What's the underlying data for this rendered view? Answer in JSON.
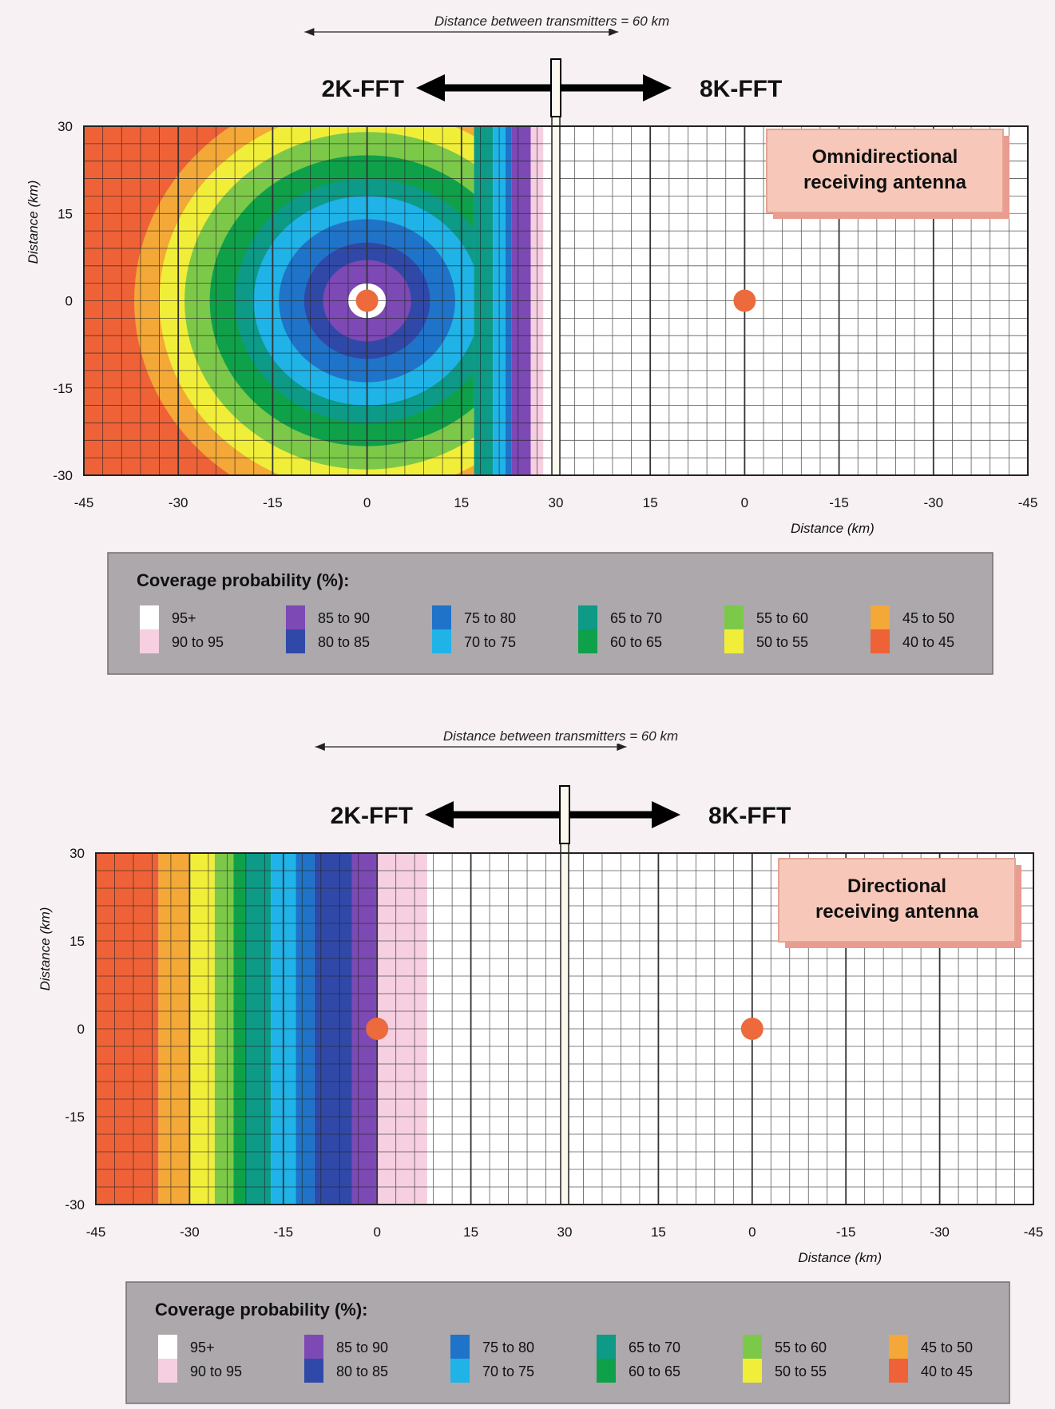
{
  "palette": {
    "95+": "#ffffff",
    "90 to 95": "#f6cfe1",
    "85 to 90": "#7d49b5",
    "80 to 85": "#3049a8",
    "75 to 80": "#1f73c8",
    "70 to 75": "#1fb3e8",
    "65 to 70": "#0d9a86",
    "60 to 65": "#0fa14a",
    "55 to 60": "#7cc94a",
    "50 to 55": "#f1ee3a",
    "45 to 50": "#f3a838",
    "40 to 45": "#ef6237"
  },
  "chart_data": [
    {
      "type": "heatmap",
      "transmitter_spacing_label": "Distance between transmitters = 60 km",
      "left_label": "2K-FFT",
      "right_label": "8K-FFT",
      "antenna_label": [
        "Omnidirectional",
        "receiving antenna"
      ],
      "ylabel": "Distance (km)",
      "xlabel": "Distance (km)",
      "x_ticks": [
        "-45",
        "-30",
        "-15",
        "0",
        "15",
        "30",
        "15",
        "0",
        "-15",
        "-30",
        "-45"
      ],
      "y_ticks": [
        "30",
        "15",
        "0",
        "-15",
        "-30"
      ],
      "xlim": [
        -45,
        105
      ],
      "ylim": [
        -30,
        30
      ],
      "transmitters": [
        {
          "x": 0,
          "y": 0
        },
        {
          "x": 60,
          "y": 0
        }
      ],
      "coverage_model": "radial",
      "coverage_bands": [
        {
          "class": "95+",
          "radius_km": 3
        },
        {
          "class": "85 to 90",
          "radius_km": 7
        },
        {
          "class": "80 to 85",
          "radius_km": 10
        },
        {
          "class": "75 to 80",
          "radius_km": 14
        },
        {
          "class": "70 to 75",
          "radius_km": 18
        },
        {
          "class": "65 to 70",
          "radius_km": 21
        },
        {
          "class": "60 to 65",
          "radius_km": 25
        },
        {
          "class": "55 to 60",
          "radius_km": 29
        },
        {
          "class": "50 to 55",
          "radius_km": 33
        },
        {
          "class": "45 to 50",
          "radius_km": 37
        }
      ],
      "outer_class": "40 to 45",
      "boundary_km": 17,
      "boundary_bands": [
        {
          "class": "65 to 70",
          "to_km": 20
        },
        {
          "class": "70 to 75",
          "to_km": 22
        },
        {
          "class": "75 to 80",
          "to_km": 23
        },
        {
          "class": "85 to 90",
          "to_km": 26
        },
        {
          "class": "90 to 95",
          "to_km": 28
        }
      ],
      "right_class": "95+",
      "legend": {
        "title": "Coverage probability (%):",
        "entries": [
          "95+",
          "90 to 95",
          "85 to 90",
          "80 to 85",
          "75 to 80",
          "70 to 75",
          "65 to 70",
          "60 to 65",
          "55 to 60",
          "50 to 55",
          "45 to 50",
          "40 to 45"
        ]
      }
    },
    {
      "type": "heatmap",
      "transmitter_spacing_label": "Distance between transmitters = 60 km",
      "left_label": "2K-FFT",
      "right_label": "8K-FFT",
      "antenna_label": [
        "Directional",
        "receiving antenna"
      ],
      "ylabel": "Distance (km)",
      "xlabel": "Distance (km)",
      "x_ticks": [
        "-45",
        "-30",
        "-15",
        "0",
        "15",
        "30",
        "15",
        "0",
        "-15",
        "-30",
        "-45"
      ],
      "y_ticks": [
        "30",
        "15",
        "0",
        "-15",
        "-30"
      ],
      "xlim": [
        -45,
        105
      ],
      "ylim": [
        -30,
        30
      ],
      "transmitters": [
        {
          "x": 0,
          "y": 0
        },
        {
          "x": 60,
          "y": 0
        }
      ],
      "coverage_model": "vertical",
      "coverage_bands": [
        {
          "class": "90 to 95",
          "from_km": 0
        },
        {
          "class": "85 to 90",
          "from_km": -4
        },
        {
          "class": "80 to 85",
          "from_km": -10
        },
        {
          "class": "75 to 80",
          "from_km": -13
        },
        {
          "class": "70 to 75",
          "from_km": -17
        },
        {
          "class": "65 to 70",
          "from_km": -21
        },
        {
          "class": "60 to 65",
          "from_km": -23
        },
        {
          "class": "55 to 60",
          "from_km": -26
        },
        {
          "class": "50 to 55",
          "from_km": -30
        },
        {
          "class": "45 to 50",
          "from_km": -35
        },
        {
          "class": "40 to 45",
          "from_km": -40
        }
      ],
      "right_class": "95+",
      "legend": {
        "title": "Coverage probability (%):",
        "entries": [
          "95+",
          "90 to 95",
          "85 to 90",
          "80 to 85",
          "75 to 80",
          "70 to 75",
          "65 to 70",
          "60 to 65",
          "55 to 60",
          "50 to 55",
          "45 to 50",
          "40 to 45"
        ]
      }
    }
  ]
}
